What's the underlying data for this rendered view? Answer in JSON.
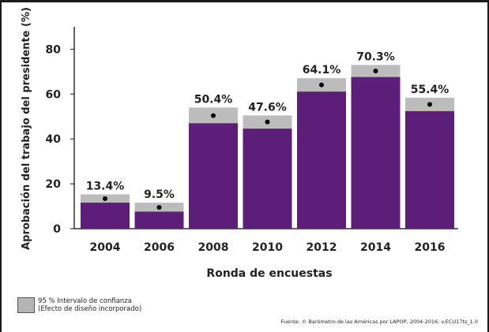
{
  "chart_data": {
    "type": "bar",
    "categories": [
      "2004",
      "2006",
      "2008",
      "2010",
      "2012",
      "2014",
      "2016"
    ],
    "series": [
      {
        "values": [
          13.4,
          9.5,
          50.4,
          47.6,
          64.1,
          70.3,
          55.4
        ],
        "labels": [
          "13.4%",
          "9.5%",
          "50.4%",
          "47.6%",
          "64.1%",
          "70.3%",
          "55.4%"
        ],
        "ci_low": [
          11.6,
          7.6,
          47.0,
          44.6,
          61.1,
          67.6,
          52.4
        ],
        "ci_high": [
          15.3,
          11.6,
          54.0,
          50.5,
          67.1,
          73.0,
          58.4
        ]
      }
    ],
    "xlabel": "Ronda de encuestas",
    "ylabel": "Aprobación del trabajo del presidente (%)",
    "yticks": [
      "0",
      "20",
      "40",
      "60",
      "80"
    ],
    "ylim": [
      0,
      90
    ],
    "grid": false,
    "colors": {
      "bar": "#5c1e78",
      "ci": "#bcbcbc",
      "point": "#000000"
    }
  },
  "legend": {
    "line1": "95 % Intervalo de confianza",
    "line2": "(Efecto de diseño incorporado)"
  },
  "source": "Fuente: © Barómetro de las Américas por LAPOP, 2004-2016; v.ECU17ts_1.0"
}
